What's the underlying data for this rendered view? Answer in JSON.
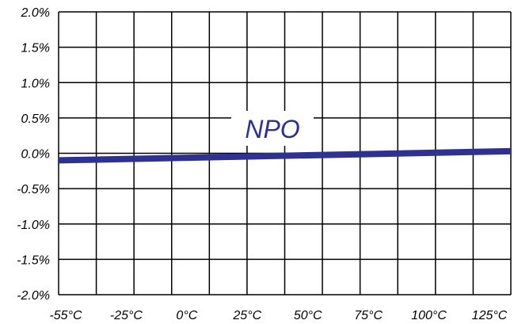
{
  "chart_data": {
    "type": "line",
    "title": "",
    "xlabel": "",
    "ylabel": "",
    "x": [
      -55,
      -25,
      0,
      25,
      50,
      75,
      100,
      125
    ],
    "x_tick_labels": [
      "-55°C",
      "-25°C",
      "0°C",
      "25°C",
      "50°C",
      "75°C",
      "100°C",
      "125°C"
    ],
    "y_tick_values": [
      2.0,
      1.5,
      1.0,
      0.5,
      0.0,
      -0.5,
      -1.0,
      -1.5,
      -2.0
    ],
    "y_tick_labels": [
      "2.0%",
      "1.5%",
      "1.0%",
      "0.5%",
      "0.0%",
      "-0.5%",
      "-1.0%",
      "-1.5%",
      "-2.0%"
    ],
    "xlim": [
      -55,
      125
    ],
    "ylim": [
      -2.0,
      2.0
    ],
    "grid": true,
    "series": [
      {
        "name": "NPO",
        "color": "#2e3192",
        "x": [
          -55,
          125
        ],
        "values": [
          -0.1,
          0.03
        ]
      }
    ]
  }
}
